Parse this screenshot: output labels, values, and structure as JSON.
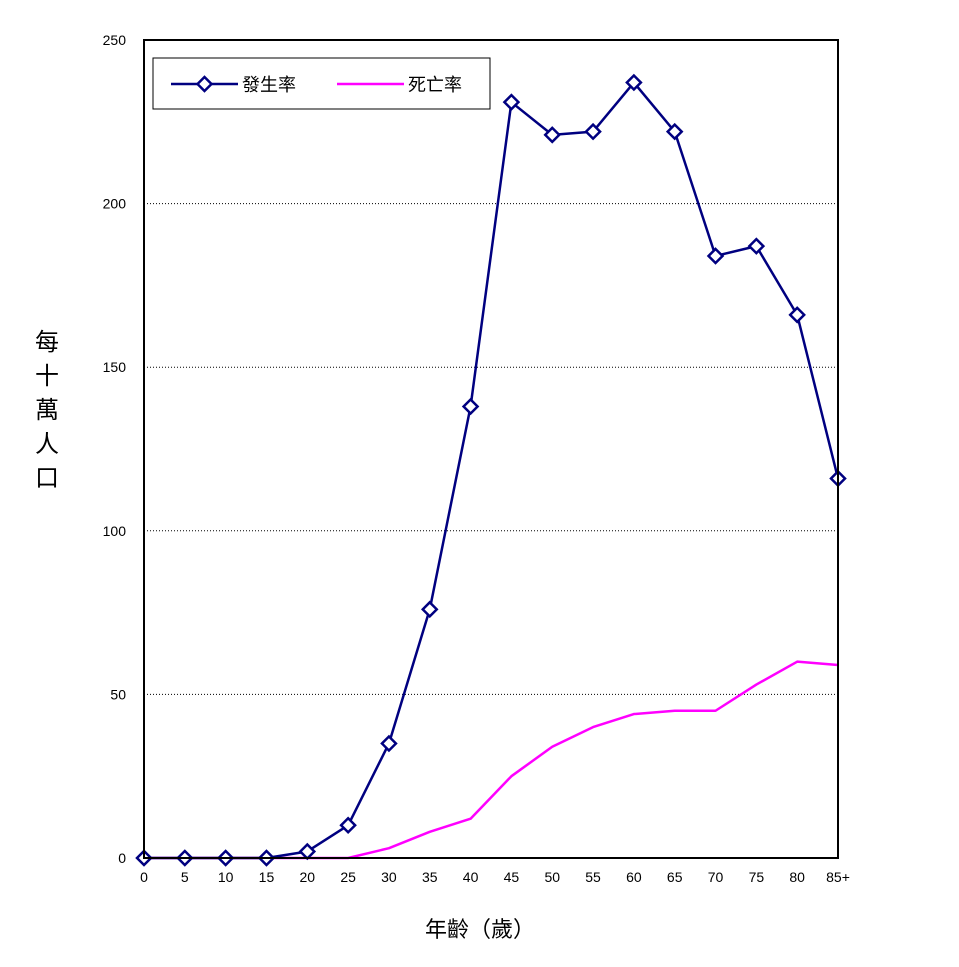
{
  "chart_data": {
    "type": "line",
    "categories": [
      "0",
      "5",
      "10",
      "15",
      "20",
      "25",
      "30",
      "35",
      "40",
      "45",
      "50",
      "55",
      "60",
      "65",
      "70",
      "75",
      "80",
      "85+"
    ],
    "series": [
      {
        "name": "發生率",
        "color": "#000080",
        "marker": "diamond-open",
        "values": [
          0,
          0,
          0,
          0,
          2,
          10,
          35,
          76,
          138,
          231,
          221,
          222,
          237,
          222,
          184,
          187,
          166,
          116
        ]
      },
      {
        "name": "死亡率",
        "color": "#ff00ff",
        "marker": "none",
        "values": [
          0,
          0,
          0,
          0,
          0,
          0,
          3,
          8,
          12,
          25,
          34,
          40,
          44,
          45,
          45,
          53,
          60,
          59
        ]
      }
    ],
    "ylabel": "每十萬人口",
    "xlabel": "年齡（歲）",
    "ylim": [
      0,
      250
    ],
    "yticks": [
      "0",
      "50",
      "100",
      "150",
      "200",
      "250"
    ],
    "grid": "horizontal dotted",
    "legend_position": "top-left"
  }
}
